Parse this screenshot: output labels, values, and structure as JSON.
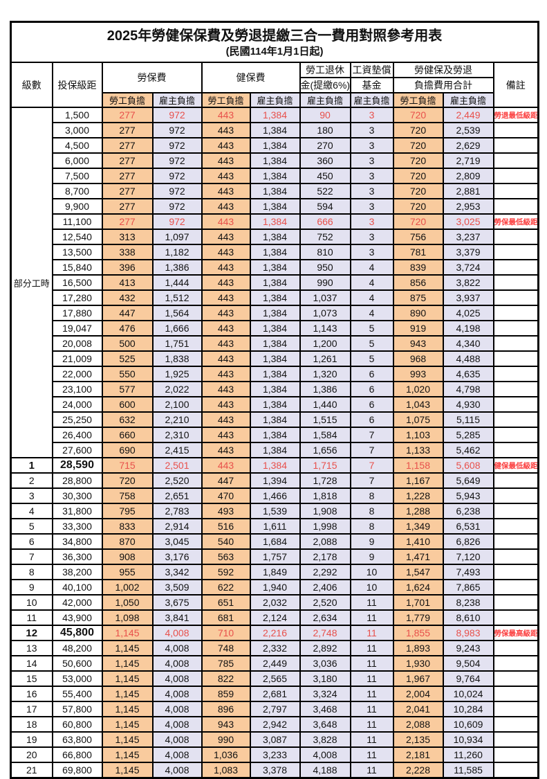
{
  "title": "2025年勞健保保費及勞退提繳三合一費用對照參考用表",
  "subtitle": "(民國114年1月1日起)",
  "header": {
    "level": "級數",
    "salary": "投保級距",
    "labor_fee": "勞保費",
    "health_fee": "健保費",
    "pension_line1": "勞工退休",
    "pension_line2": "金(提繳6%)",
    "fund_line1": "工資墊償",
    "fund_line2": "基金",
    "total_line1": "勞健保及勞退",
    "total_line2": "負擔費用合計",
    "note": "備註",
    "worker_burden": "勞工負擔",
    "employer_burden": "雇主負擔"
  },
  "part_time_label": "部分工時",
  "colors": {
    "worker_bg": "#F9CB9E",
    "employer_bg": "#E3E2F1",
    "highlight_red": "#E8504B",
    "note_red": "#FB3E3E",
    "border": "#000000"
  },
  "rows": [
    {
      "level": "",
      "salary": "1,500",
      "values": [
        "277",
        "972",
        "443",
        "1,384",
        "90",
        "3",
        "720",
        "2,449"
      ],
      "note": "勞退最低級距",
      "red": true
    },
    {
      "level": "",
      "salary": "3,000",
      "values": [
        "277",
        "972",
        "443",
        "1,384",
        "180",
        "3",
        "720",
        "2,539"
      ],
      "note": ""
    },
    {
      "level": "",
      "salary": "4,500",
      "values": [
        "277",
        "972",
        "443",
        "1,384",
        "270",
        "3",
        "720",
        "2,629"
      ],
      "note": ""
    },
    {
      "level": "",
      "salary": "6,000",
      "values": [
        "277",
        "972",
        "443",
        "1,384",
        "360",
        "3",
        "720",
        "2,719"
      ],
      "note": ""
    },
    {
      "level": "",
      "salary": "7,500",
      "values": [
        "277",
        "972",
        "443",
        "1,384",
        "450",
        "3",
        "720",
        "2,809"
      ],
      "note": ""
    },
    {
      "level": "",
      "salary": "8,700",
      "values": [
        "277",
        "972",
        "443",
        "1,384",
        "522",
        "3",
        "720",
        "2,881"
      ],
      "note": ""
    },
    {
      "level": "",
      "salary": "9,900",
      "values": [
        "277",
        "972",
        "443",
        "1,384",
        "594",
        "3",
        "720",
        "2,953"
      ],
      "note": ""
    },
    {
      "level": "",
      "salary": "11,100",
      "values": [
        "277",
        "972",
        "443",
        "1,384",
        "666",
        "3",
        "720",
        "3,025"
      ],
      "note": "勞保最低級距",
      "red": true
    },
    {
      "level": "",
      "salary": "12,540",
      "values": [
        "313",
        "1,097",
        "443",
        "1,384",
        "752",
        "3",
        "756",
        "3,237"
      ],
      "note": ""
    },
    {
      "level": "",
      "salary": "13,500",
      "values": [
        "338",
        "1,182",
        "443",
        "1,384",
        "810",
        "3",
        "781",
        "3,379"
      ],
      "note": ""
    },
    {
      "level": "",
      "salary": "15,840",
      "values": [
        "396",
        "1,386",
        "443",
        "1,384",
        "950",
        "4",
        "839",
        "3,724"
      ],
      "note": ""
    },
    {
      "level": "",
      "salary": "16,500",
      "values": [
        "413",
        "1,444",
        "443",
        "1,384",
        "990",
        "4",
        "856",
        "3,822"
      ],
      "note": ""
    },
    {
      "level": "",
      "salary": "17,280",
      "values": [
        "432",
        "1,512",
        "443",
        "1,384",
        "1,037",
        "4",
        "875",
        "3,937"
      ],
      "note": ""
    },
    {
      "level": "",
      "salary": "17,880",
      "values": [
        "447",
        "1,564",
        "443",
        "1,384",
        "1,073",
        "4",
        "890",
        "4,025"
      ],
      "note": ""
    },
    {
      "level": "",
      "salary": "19,047",
      "values": [
        "476",
        "1,666",
        "443",
        "1,384",
        "1,143",
        "5",
        "919",
        "4,198"
      ],
      "note": ""
    },
    {
      "level": "",
      "salary": "20,008",
      "values": [
        "500",
        "1,751",
        "443",
        "1,384",
        "1,200",
        "5",
        "943",
        "4,340"
      ],
      "note": ""
    },
    {
      "level": "",
      "salary": "21,009",
      "values": [
        "525",
        "1,838",
        "443",
        "1,384",
        "1,261",
        "5",
        "968",
        "4,488"
      ],
      "note": ""
    },
    {
      "level": "",
      "salary": "22,000",
      "values": [
        "550",
        "1,925",
        "443",
        "1,384",
        "1,320",
        "6",
        "993",
        "4,635"
      ],
      "note": ""
    },
    {
      "level": "",
      "salary": "23,100",
      "values": [
        "577",
        "2,022",
        "443",
        "1,384",
        "1,386",
        "6",
        "1,020",
        "4,798"
      ],
      "note": ""
    },
    {
      "level": "",
      "salary": "24,000",
      "values": [
        "600",
        "2,100",
        "443",
        "1,384",
        "1,440",
        "6",
        "1,043",
        "4,930"
      ],
      "note": ""
    },
    {
      "level": "",
      "salary": "25,250",
      "values": [
        "632",
        "2,210",
        "443",
        "1,384",
        "1,515",
        "6",
        "1,075",
        "5,115"
      ],
      "note": ""
    },
    {
      "level": "",
      "salary": "26,400",
      "values": [
        "660",
        "2,310",
        "443",
        "1,384",
        "1,584",
        "7",
        "1,103",
        "5,285"
      ],
      "note": ""
    },
    {
      "level": "",
      "salary": "27,600",
      "values": [
        "690",
        "2,415",
        "443",
        "1,384",
        "1,656",
        "7",
        "1,133",
        "5,462"
      ],
      "note": ""
    },
    {
      "level": "1",
      "salary": "28,590",
      "values": [
        "715",
        "2,501",
        "443",
        "1,384",
        "1,715",
        "7",
        "1,158",
        "5,608"
      ],
      "note": "健保最低級距",
      "red": true,
      "bold": true
    },
    {
      "level": "2",
      "salary": "28,800",
      "values": [
        "720",
        "2,520",
        "447",
        "1,394",
        "1,728",
        "7",
        "1,167",
        "5,649"
      ],
      "note": ""
    },
    {
      "level": "3",
      "salary": "30,300",
      "values": [
        "758",
        "2,651",
        "470",
        "1,466",
        "1,818",
        "8",
        "1,228",
        "5,943"
      ],
      "note": ""
    },
    {
      "level": "4",
      "salary": "31,800",
      "values": [
        "795",
        "2,783",
        "493",
        "1,539",
        "1,908",
        "8",
        "1,288",
        "6,238"
      ],
      "note": ""
    },
    {
      "level": "5",
      "salary": "33,300",
      "values": [
        "833",
        "2,914",
        "516",
        "1,611",
        "1,998",
        "8",
        "1,349",
        "6,531"
      ],
      "note": ""
    },
    {
      "level": "6",
      "salary": "34,800",
      "values": [
        "870",
        "3,045",
        "540",
        "1,684",
        "2,088",
        "9",
        "1,410",
        "6,826"
      ],
      "note": ""
    },
    {
      "level": "7",
      "salary": "36,300",
      "values": [
        "908",
        "3,176",
        "563",
        "1,757",
        "2,178",
        "9",
        "1,471",
        "7,120"
      ],
      "note": ""
    },
    {
      "level": "8",
      "salary": "38,200",
      "values": [
        "955",
        "3,342",
        "592",
        "1,849",
        "2,292",
        "10",
        "1,547",
        "7,493"
      ],
      "note": ""
    },
    {
      "level": "9",
      "salary": "40,100",
      "values": [
        "1,002",
        "3,509",
        "622",
        "1,940",
        "2,406",
        "10",
        "1,624",
        "7,865"
      ],
      "note": ""
    },
    {
      "level": "10",
      "salary": "42,000",
      "values": [
        "1,050",
        "3,675",
        "651",
        "2,032",
        "2,520",
        "11",
        "1,701",
        "8,238"
      ],
      "note": ""
    },
    {
      "level": "11",
      "salary": "43,900",
      "values": [
        "1,098",
        "3,841",
        "681",
        "2,124",
        "2,634",
        "11",
        "1,779",
        "8,610"
      ],
      "note": ""
    },
    {
      "level": "12",
      "salary": "45,800",
      "values": [
        "1,145",
        "4,008",
        "710",
        "2,216",
        "2,748",
        "11",
        "1,855",
        "8,983"
      ],
      "note": "勞保最高級距",
      "red": true,
      "bold": true
    },
    {
      "level": "13",
      "salary": "48,200",
      "values": [
        "1,145",
        "4,008",
        "748",
        "2,332",
        "2,892",
        "11",
        "1,893",
        "9,243"
      ],
      "note": ""
    },
    {
      "level": "14",
      "salary": "50,600",
      "values": [
        "1,145",
        "4,008",
        "785",
        "2,449",
        "3,036",
        "11",
        "1,930",
        "9,504"
      ],
      "note": ""
    },
    {
      "level": "15",
      "salary": "53,000",
      "values": [
        "1,145",
        "4,008",
        "822",
        "2,565",
        "3,180",
        "11",
        "1,967",
        "9,764"
      ],
      "note": ""
    },
    {
      "level": "16",
      "salary": "55,400",
      "values": [
        "1,145",
        "4,008",
        "859",
        "2,681",
        "3,324",
        "11",
        "2,004",
        "10,024"
      ],
      "note": ""
    },
    {
      "level": "17",
      "salary": "57,800",
      "values": [
        "1,145",
        "4,008",
        "896",
        "2,797",
        "3,468",
        "11",
        "2,041",
        "10,284"
      ],
      "note": ""
    },
    {
      "level": "18",
      "salary": "60,800",
      "values": [
        "1,145",
        "4,008",
        "943",
        "2,942",
        "3,648",
        "11",
        "2,088",
        "10,609"
      ],
      "note": ""
    },
    {
      "level": "19",
      "salary": "63,800",
      "values": [
        "1,145",
        "4,008",
        "990",
        "3,087",
        "3,828",
        "11",
        "2,135",
        "10,934"
      ],
      "note": ""
    },
    {
      "level": "20",
      "salary": "66,800",
      "values": [
        "1,145",
        "4,008",
        "1,036",
        "3,233",
        "4,008",
        "11",
        "2,181",
        "11,260"
      ],
      "note": ""
    },
    {
      "level": "21",
      "salary": "69,800",
      "values": [
        "1,145",
        "4,008",
        "1,083",
        "3,378",
        "4,188",
        "11",
        "2,228",
        "11,585"
      ],
      "note": ""
    }
  ]
}
